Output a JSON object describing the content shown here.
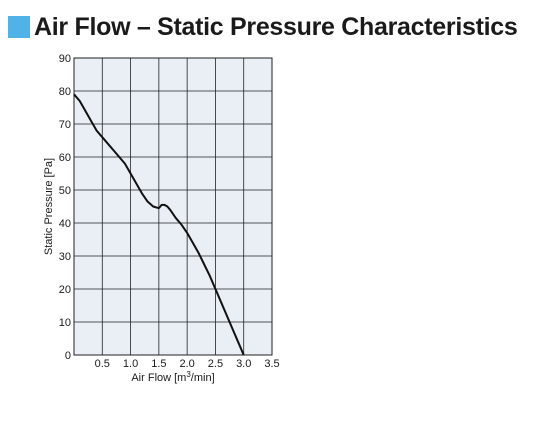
{
  "header": {
    "title": "Air Flow – Static Pressure Characteristics"
  },
  "colors": {
    "title_square": "#4fb3e8",
    "plot_background": "#e9eff5",
    "grid": "#222222",
    "curve": "#111111"
  },
  "chart_data": {
    "type": "line",
    "title": "",
    "xlabel_main": "Air Flow [m",
    "xlabel_sup": "3",
    "xlabel_end": "/min]",
    "ylabel": "Static Pressure [Pa]",
    "xlim": [
      0,
      3.5
    ],
    "ylim": [
      0,
      90
    ],
    "x_ticks": [
      0.5,
      1.0,
      1.5,
      2.0,
      2.5,
      3.0,
      3.5
    ],
    "x_tick_labels": [
      "0.5",
      "1.0",
      "1.5",
      "2.0",
      "2.5",
      "3.0",
      "3.5"
    ],
    "y_ticks": [
      0,
      10,
      20,
      30,
      40,
      50,
      60,
      70,
      80,
      90
    ],
    "y_tick_labels": [
      "0",
      "10",
      "20",
      "30",
      "40",
      "50",
      "60",
      "70",
      "80",
      "90"
    ],
    "grid": true,
    "series": [
      {
        "x": [
          0.0,
          0.1,
          0.2,
          0.3,
          0.4,
          0.5,
          0.6,
          0.7,
          0.8,
          0.9,
          1.0,
          1.1,
          1.2,
          1.3,
          1.4,
          1.5,
          1.55,
          1.6,
          1.65,
          1.7,
          1.8,
          1.9,
          2.0,
          2.1,
          2.2,
          2.3,
          2.4,
          2.5,
          2.6,
          2.7,
          2.8,
          2.9,
          3.0
        ],
        "y": [
          79,
          77,
          74,
          71,
          68,
          66,
          64,
          62,
          60,
          58,
          55,
          52,
          49,
          46.5,
          45,
          44.5,
          45.5,
          45.5,
          45,
          44,
          41.5,
          39.5,
          37,
          34,
          31,
          27.5,
          24,
          20,
          16,
          12,
          8,
          4,
          0
        ]
      }
    ]
  }
}
